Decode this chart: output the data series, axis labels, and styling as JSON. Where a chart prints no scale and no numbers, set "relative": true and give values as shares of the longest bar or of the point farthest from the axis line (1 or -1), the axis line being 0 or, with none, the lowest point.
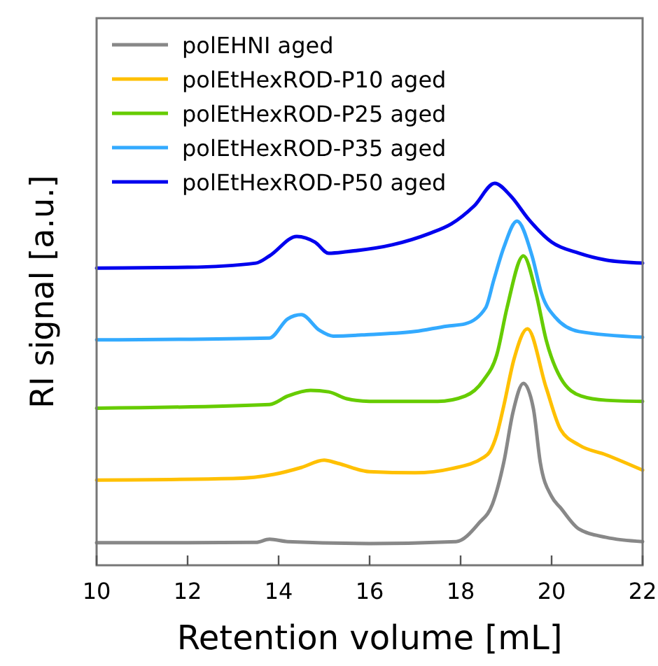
{
  "chart_data": {
    "type": "line",
    "relative": true,
    "xlabel": "Retention volume [mL]",
    "ylabel": "RI signal [a.u.]",
    "xlim": [
      10,
      22
    ],
    "xticks": [
      10,
      12,
      14,
      16,
      18,
      20,
      22
    ],
    "legend": "top left",
    "grid": false,
    "marker": "none",
    "line_style": "solid",
    "series": [
      {
        "name": "polEHNI aged",
        "color": "#888888",
        "x": [
          10,
          12,
          13.5,
          13.8,
          14.2,
          16,
          17.9,
          18.4,
          18.7,
          18.95,
          19.15,
          19.38,
          19.6,
          19.75,
          20.0,
          20.2,
          20.6,
          21.2,
          22
        ],
        "values": [
          0.059,
          0.059,
          0.06,
          0.068,
          0.062,
          0.057,
          0.062,
          0.11,
          0.16,
          0.27,
          0.4,
          0.476,
          0.41,
          0.27,
          0.18,
          0.15,
          0.095,
          0.073,
          0.062
        ]
      },
      {
        "name": "polEtHexROD-P10 aged",
        "color": "#ffc000",
        "x": [
          10,
          13,
          13.9,
          14.5,
          15,
          15.3,
          16,
          17,
          17.8,
          18.5,
          18.64,
          18.8,
          18.95,
          19.17,
          19.47,
          19.88,
          20.2,
          20.6,
          21.2,
          22
        ],
        "values": [
          0.223,
          0.227,
          0.238,
          0.256,
          0.275,
          0.267,
          0.245,
          0.242,
          0.253,
          0.282,
          0.297,
          0.344,
          0.418,
          0.538,
          0.619,
          0.465,
          0.355,
          0.315,
          0.289,
          0.249
        ]
      },
      {
        "name": "polEtHexROD-P25 aged",
        "color": "#66cc00",
        "x": [
          10,
          13.8,
          14.2,
          14.7,
          15.1,
          15.5,
          16,
          17.5,
          18.1,
          18.5,
          18.8,
          19.02,
          19.38,
          19.66,
          19.88,
          20.2,
          20.65,
          21.2,
          22
        ],
        "values": [
          0.411,
          0.421,
          0.443,
          0.458,
          0.454,
          0.436,
          0.429,
          0.429,
          0.443,
          0.484,
          0.553,
          0.674,
          0.81,
          0.711,
          0.59,
          0.49,
          0.443,
          0.432,
          0.429
        ]
      },
      {
        "name": "polEtHexROD-P35 aged",
        "color": "#33aaff",
        "x": [
          10,
          13.8,
          14.2,
          14.5,
          14.9,
          15.2,
          16,
          17,
          17.7,
          18.1,
          18.55,
          18.73,
          18.95,
          19.24,
          19.57,
          19.78,
          20.09,
          20.6,
          22
        ],
        "values": [
          0.59,
          0.595,
          0.645,
          0.656,
          0.615,
          0.6,
          0.604,
          0.612,
          0.626,
          0.632,
          0.674,
          0.747,
          0.832,
          0.901,
          0.81,
          0.711,
          0.648,
          0.612,
          0.597
        ]
      },
      {
        "name": "polEtHexROD-P50 aged",
        "color": "#0000ee",
        "x": [
          10,
          12,
          13.5,
          13.8,
          14.4,
          14.8,
          15.1,
          15.5,
          16.5,
          17.3,
          17.8,
          18.3,
          18.75,
          19.1,
          19.5,
          20,
          20.6,
          21.2,
          22
        ],
        "values": [
          0.778,
          0.78,
          0.791,
          0.81,
          0.861,
          0.846,
          0.817,
          0.821,
          0.839,
          0.868,
          0.894,
          0.941,
          1.0,
          0.967,
          0.905,
          0.846,
          0.817,
          0.799,
          0.791
        ]
      }
    ]
  }
}
